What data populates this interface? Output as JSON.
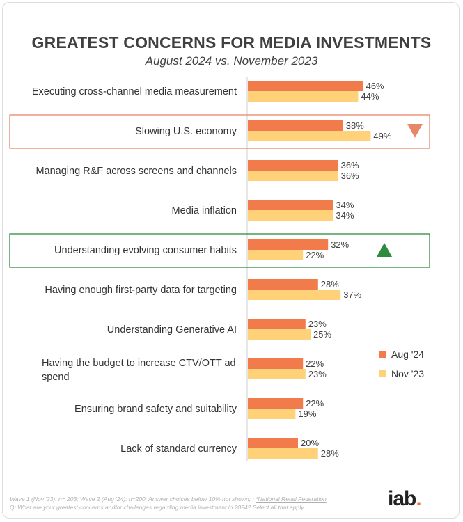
{
  "header": {
    "title": "GREATEST CONCERNS FOR MEDIA INVESTMENTS",
    "subtitle": "August 2024 vs. November 2023"
  },
  "chart_data": {
    "type": "bar",
    "orientation": "horizontal",
    "categories": [
      "Executing cross-channel media measurement",
      "Slowing U.S. economy",
      "Managing R&F across screens and channels",
      "Media inflation",
      "Understanding evolving consumer habits",
      "Having enough first-party data for targeting",
      "Understanding Generative AI",
      "Having the budget to increase CTV/OTT ad spend",
      "Ensuring brand safety and suitability",
      "Lack of standard currency"
    ],
    "series": [
      {
        "name": "Aug '24",
        "color": "#f27b4b",
        "values": [
          46,
          38,
          36,
          34,
          32,
          28,
          23,
          22,
          22,
          20
        ]
      },
      {
        "name": "Nov '23",
        "color": "#ffd27a",
        "values": [
          44,
          49,
          36,
          34,
          22,
          37,
          25,
          23,
          19,
          28
        ]
      }
    ],
    "value_suffix": "%",
    "legend_position": "right",
    "highlights": [
      {
        "category_index": 1,
        "direction": "down",
        "color": "#e8866a"
      },
      {
        "category_index": 4,
        "direction": "up",
        "color": "#2e8b3e"
      }
    ]
  },
  "footnote": {
    "line1": "Wave 1 (Nov '23): n= 203; Wave 2 (Aug '24): n=200; Answer choices below 10% not shown; ; ",
    "source": "*National Retail Federation",
    "line2": "Q: What are your greatest concerns and/or challenges regarding media investment in 2024? Select all that apply."
  },
  "logo": {
    "text": "iab",
    "dot": "."
  }
}
